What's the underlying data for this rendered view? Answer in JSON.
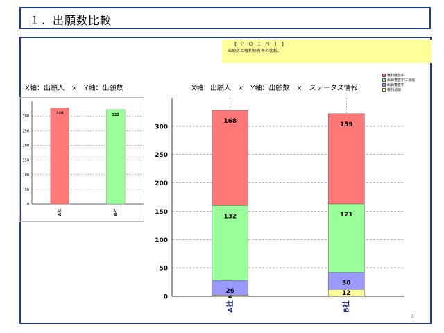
{
  "slide": {
    "title": "１．出願数比較",
    "page_number": "4"
  },
  "point": {
    "heading": "【ＰＯＩＮＴ】",
    "text": "出願数と権利保有率の比較。"
  },
  "legend": [
    {
      "label": "権利継続中",
      "color": "#ff7777"
    },
    {
      "label": "出願審査中に消滅",
      "color": "#99ff99"
    },
    {
      "label": "出願審査中",
      "color": "#9999ff"
    },
    {
      "label": "権利消滅",
      "color": "#ffff99"
    }
  ],
  "chart_data": [
    {
      "type": "bar",
      "title": "X軸：出願人　×　Y軸：出願数",
      "categories": [
        "A社",
        "B社"
      ],
      "values": [
        328,
        322
      ],
      "colors": [
        "#ff7777",
        "#99ff99"
      ],
      "ylim": [
        0,
        350
      ],
      "yticks": [
        0,
        50,
        100,
        150,
        200,
        250,
        300
      ],
      "grid": true
    },
    {
      "type": "bar",
      "stacked": true,
      "title": "X軸：出願人　×　Y軸：出願数　×　ステータス情報",
      "categories": [
        "A社",
        "B社"
      ],
      "series": [
        {
          "name": "権利消滅",
          "values": [
            2,
            12
          ],
          "color": "#ffff99"
        },
        {
          "name": "出願審査中",
          "values": [
            26,
            30
          ],
          "color": "#9999ff"
        },
        {
          "name": "出願審査中に消滅",
          "values": [
            132,
            121
          ],
          "color": "#99ff99"
        },
        {
          "name": "権利継続中",
          "values": [
            168,
            159
          ],
          "color": "#ff7777"
        }
      ],
      "ylim": [
        0,
        350
      ],
      "yticks": [
        0,
        50,
        100,
        150,
        200,
        250,
        300
      ],
      "grid": true,
      "legend_position": "top-right"
    }
  ]
}
